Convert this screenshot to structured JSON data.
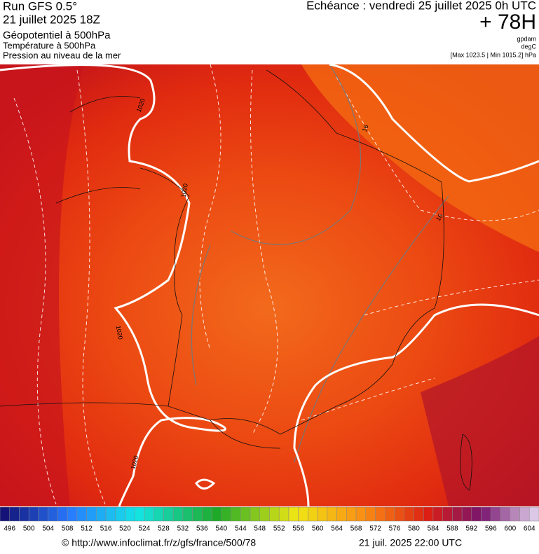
{
  "header": {
    "title": "Run GFS 0.5°",
    "run": "21 juillet 2025 18Z",
    "fields": [
      "Géopotentiel à 500hPa",
      "Température à 500hPa",
      "Pression au niveau de la mer"
    ],
    "echeance": "Echéance : vendredi 25 juillet 2025 0h UTC",
    "lead": "+ 78H",
    "units": [
      "gpdam",
      "degC",
      "[Max 1023.5 | Min 1015.2] hPa"
    ]
  },
  "map": {
    "contour_labels": [
      "1020",
      "1020",
      "1020",
      "1020",
      "16",
      "16"
    ]
  },
  "colorbar": {
    "labels": [
      496,
      500,
      504,
      508,
      512,
      516,
      520,
      524,
      528,
      532,
      536,
      540,
      544,
      548,
      552,
      556,
      560,
      564,
      568,
      572,
      576,
      580,
      584,
      588,
      592,
      596,
      600,
      604
    ]
  },
  "footer": {
    "source": "© http://www.infoclimat.fr/z/gfs/france/500/78",
    "date": "21 juil. 2025 22:00 UTC"
  }
}
